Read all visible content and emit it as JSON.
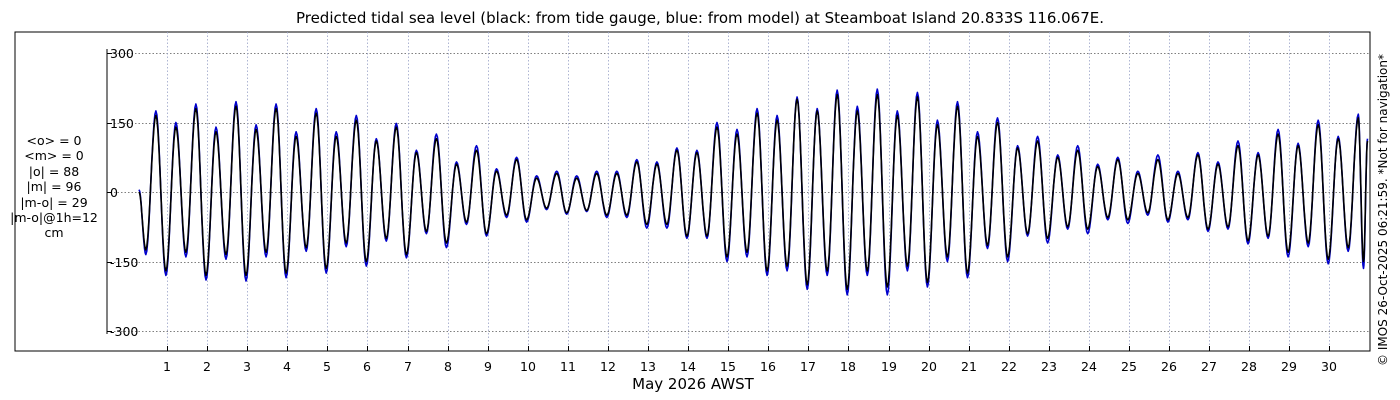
{
  "title": "Predicted tidal sea level (black: from tide gauge, blue: from model) at Steamboat Island 20.833S 116.067E.",
  "stats": [
    "<o> = 0",
    "<m> = 0",
    "|o| = 88",
    "|m| = 96",
    "|m-o| = 29",
    "|m-o|@1h=12",
    "cm"
  ],
  "credit": "© IMOS 26-Oct-2025 06:21:59. *Not for navigation*",
  "chart_data": {
    "type": "line",
    "title": "Predicted tidal sea level (black: from tide gauge, blue: from model) at Steamboat Island 20.833S 116.067E.",
    "xlabel": "May 2026 AWST",
    "ylabel": "",
    "units": "cm",
    "xlim_days": [
      0.0,
      31.0
    ],
    "ylim": [
      -350,
      350
    ],
    "yticks": [
      -300,
      -150,
      0,
      150,
      300
    ],
    "ytick_labels": [
      "-300",
      "-150",
      "0",
      "150",
      "300"
    ],
    "xticks": [
      1,
      2,
      3,
      4,
      5,
      6,
      7,
      8,
      9,
      10,
      11,
      12,
      13,
      14,
      15,
      16,
      17,
      18,
      19,
      20,
      21,
      22,
      23,
      24,
      25,
      26,
      27,
      28,
      29,
      30
    ],
    "grid": true,
    "series": [
      {
        "name": "black: from tide gauge",
        "color": "#000000",
        "highs": [
          [
            0.3,
            0
          ],
          [
            0.72,
            165
          ],
          [
            1.22,
            140
          ],
          [
            1.72,
            180
          ],
          [
            2.22,
            130
          ],
          [
            2.72,
            185
          ],
          [
            3.22,
            135
          ],
          [
            3.72,
            180
          ],
          [
            4.22,
            120
          ],
          [
            4.72,
            170
          ],
          [
            5.22,
            120
          ],
          [
            5.72,
            155
          ],
          [
            6.22,
            110
          ],
          [
            6.72,
            140
          ],
          [
            7.22,
            85
          ],
          [
            7.72,
            115
          ],
          [
            8.22,
            60
          ],
          [
            8.72,
            90
          ],
          [
            9.22,
            45
          ],
          [
            9.72,
            70
          ],
          [
            10.22,
            30
          ],
          [
            10.72,
            40
          ],
          [
            11.22,
            30
          ],
          [
            11.72,
            40
          ],
          [
            12.22,
            40
          ],
          [
            12.72,
            65
          ],
          [
            13.22,
            60
          ],
          [
            13.72,
            90
          ],
          [
            14.22,
            85
          ],
          [
            14.72,
            140
          ],
          [
            15.22,
            125
          ],
          [
            15.72,
            170
          ],
          [
            16.22,
            155
          ],
          [
            16.72,
            200
          ],
          [
            17.22,
            175
          ],
          [
            17.72,
            210
          ],
          [
            18.22,
            175
          ],
          [
            18.72,
            210
          ],
          [
            19.22,
            165
          ],
          [
            19.72,
            205
          ],
          [
            20.22,
            145
          ],
          [
            20.72,
            185
          ],
          [
            21.22,
            120
          ],
          [
            21.72,
            150
          ],
          [
            22.22,
            95
          ],
          [
            22.72,
            110
          ],
          [
            23.22,
            75
          ],
          [
            23.72,
            90
          ],
          [
            24.22,
            55
          ],
          [
            24.72,
            70
          ],
          [
            25.22,
            40
          ],
          [
            25.72,
            70
          ],
          [
            26.22,
            40
          ],
          [
            26.72,
            80
          ],
          [
            27.22,
            60
          ],
          [
            27.72,
            100
          ],
          [
            28.22,
            80
          ],
          [
            28.72,
            125
          ],
          [
            29.22,
            100
          ],
          [
            29.72,
            145
          ],
          [
            30.22,
            115
          ],
          [
            30.72,
            160
          ],
          [
            30.95,
            110
          ]
        ],
        "lows": [
          [
            0.47,
            -125
          ],
          [
            0.97,
            -170
          ],
          [
            1.47,
            -130
          ],
          [
            1.97,
            -180
          ],
          [
            2.47,
            -135
          ],
          [
            2.97,
            -180
          ],
          [
            3.47,
            -130
          ],
          [
            3.97,
            -175
          ],
          [
            4.47,
            -120
          ],
          [
            4.97,
            -165
          ],
          [
            5.47,
            -110
          ],
          [
            5.97,
            -150
          ],
          [
            6.47,
            -100
          ],
          [
            6.97,
            -135
          ],
          [
            7.47,
            -85
          ],
          [
            7.97,
            -110
          ],
          [
            8.47,
            -65
          ],
          [
            8.97,
            -90
          ],
          [
            9.47,
            -50
          ],
          [
            9.97,
            -60
          ],
          [
            10.47,
            -35
          ],
          [
            10.97,
            -45
          ],
          [
            11.47,
            -40
          ],
          [
            11.97,
            -50
          ],
          [
            12.47,
            -50
          ],
          [
            12.97,
            -70
          ],
          [
            13.47,
            -70
          ],
          [
            13.97,
            -95
          ],
          [
            14.47,
            -95
          ],
          [
            14.97,
            -140
          ],
          [
            15.47,
            -130
          ],
          [
            15.97,
            -170
          ],
          [
            16.47,
            -160
          ],
          [
            16.97,
            -200
          ],
          [
            17.47,
            -170
          ],
          [
            17.97,
            -210
          ],
          [
            18.47,
            -170
          ],
          [
            18.97,
            -205
          ],
          [
            19.47,
            -160
          ],
          [
            19.97,
            -195
          ],
          [
            20.47,
            -140
          ],
          [
            20.97,
            -175
          ],
          [
            21.47,
            -115
          ],
          [
            21.97,
            -140
          ],
          [
            22.47,
            -90
          ],
          [
            22.97,
            -100
          ],
          [
            23.47,
            -75
          ],
          [
            23.97,
            -80
          ],
          [
            24.47,
            -55
          ],
          [
            24.97,
            -60
          ],
          [
            25.47,
            -45
          ],
          [
            25.97,
            -60
          ],
          [
            26.47,
            -55
          ],
          [
            26.97,
            -80
          ],
          [
            27.47,
            -75
          ],
          [
            27.97,
            -105
          ],
          [
            28.47,
            -95
          ],
          [
            28.97,
            -130
          ],
          [
            29.47,
            -110
          ],
          [
            29.97,
            -145
          ],
          [
            30.47,
            -120
          ],
          [
            30.85,
            -150
          ]
        ]
      },
      {
        "name": "blue: from model",
        "color": "#0000cc",
        "highs": [
          [
            0.3,
            5
          ],
          [
            0.72,
            175
          ],
          [
            1.22,
            150
          ],
          [
            1.72,
            190
          ],
          [
            2.22,
            140
          ],
          [
            2.72,
            195
          ],
          [
            3.22,
            145
          ],
          [
            3.72,
            190
          ],
          [
            4.22,
            130
          ],
          [
            4.72,
            180
          ],
          [
            5.22,
            130
          ],
          [
            5.72,
            165
          ],
          [
            6.22,
            115
          ],
          [
            6.72,
            148
          ],
          [
            7.22,
            90
          ],
          [
            7.72,
            125
          ],
          [
            8.22,
            65
          ],
          [
            8.72,
            100
          ],
          [
            9.22,
            50
          ],
          [
            9.72,
            75
          ],
          [
            10.22,
            35
          ],
          [
            10.72,
            45
          ],
          [
            11.22,
            35
          ],
          [
            11.72,
            45
          ],
          [
            12.22,
            45
          ],
          [
            12.72,
            70
          ],
          [
            13.22,
            65
          ],
          [
            13.72,
            95
          ],
          [
            14.22,
            90
          ],
          [
            14.72,
            150
          ],
          [
            15.22,
            135
          ],
          [
            15.72,
            180
          ],
          [
            16.22,
            165
          ],
          [
            16.72,
            205
          ],
          [
            17.22,
            180
          ],
          [
            17.72,
            220
          ],
          [
            18.22,
            185
          ],
          [
            18.72,
            222
          ],
          [
            19.22,
            175
          ],
          [
            19.72,
            215
          ],
          [
            20.22,
            155
          ],
          [
            20.72,
            195
          ],
          [
            21.22,
            130
          ],
          [
            21.72,
            160
          ],
          [
            22.22,
            100
          ],
          [
            22.72,
            120
          ],
          [
            23.22,
            80
          ],
          [
            23.72,
            100
          ],
          [
            24.22,
            60
          ],
          [
            24.72,
            75
          ],
          [
            25.22,
            45
          ],
          [
            25.72,
            80
          ],
          [
            26.22,
            45
          ],
          [
            26.72,
            85
          ],
          [
            27.22,
            65
          ],
          [
            27.72,
            110
          ],
          [
            28.22,
            85
          ],
          [
            28.72,
            135
          ],
          [
            29.22,
            105
          ],
          [
            29.72,
            155
          ],
          [
            30.22,
            120
          ],
          [
            30.72,
            168
          ],
          [
            30.95,
            115
          ]
        ],
        "lows": [
          [
            0.47,
            -135
          ],
          [
            0.97,
            -180
          ],
          [
            1.47,
            -140
          ],
          [
            1.97,
            -190
          ],
          [
            2.47,
            -145
          ],
          [
            2.97,
            -192
          ],
          [
            3.47,
            -140
          ],
          [
            3.97,
            -185
          ],
          [
            4.47,
            -128
          ],
          [
            4.97,
            -175
          ],
          [
            5.47,
            -118
          ],
          [
            5.97,
            -160
          ],
          [
            6.47,
            -106
          ],
          [
            6.97,
            -142
          ],
          [
            7.47,
            -90
          ],
          [
            7.97,
            -120
          ],
          [
            8.47,
            -70
          ],
          [
            8.97,
            -95
          ],
          [
            9.47,
            -55
          ],
          [
            9.97,
            -65
          ],
          [
            10.47,
            -38
          ],
          [
            10.97,
            -48
          ],
          [
            11.47,
            -42
          ],
          [
            11.97,
            -55
          ],
          [
            12.47,
            -55
          ],
          [
            12.97,
            -78
          ],
          [
            13.47,
            -78
          ],
          [
            13.97,
            -100
          ],
          [
            14.47,
            -100
          ],
          [
            14.97,
            -150
          ],
          [
            15.47,
            -140
          ],
          [
            15.97,
            -180
          ],
          [
            16.47,
            -170
          ],
          [
            16.97,
            -210
          ],
          [
            17.47,
            -180
          ],
          [
            17.97,
            -222
          ],
          [
            18.47,
            -180
          ],
          [
            18.97,
            -222
          ],
          [
            19.47,
            -170
          ],
          [
            19.97,
            -205
          ],
          [
            20.47,
            -150
          ],
          [
            20.97,
            -185
          ],
          [
            21.47,
            -122
          ],
          [
            21.97,
            -150
          ],
          [
            22.47,
            -95
          ],
          [
            22.97,
            -110
          ],
          [
            23.47,
            -80
          ],
          [
            23.97,
            -90
          ],
          [
            24.47,
            -60
          ],
          [
            24.97,
            -68
          ],
          [
            25.47,
            -50
          ],
          [
            25.97,
            -65
          ],
          [
            26.47,
            -60
          ],
          [
            26.97,
            -85
          ],
          [
            27.47,
            -80
          ],
          [
            27.97,
            -112
          ],
          [
            28.47,
            -100
          ],
          [
            28.97,
            -140
          ],
          [
            29.47,
            -118
          ],
          [
            29.97,
            -155
          ],
          [
            30.47,
            -128
          ],
          [
            30.85,
            -165
          ]
        ]
      }
    ]
  }
}
